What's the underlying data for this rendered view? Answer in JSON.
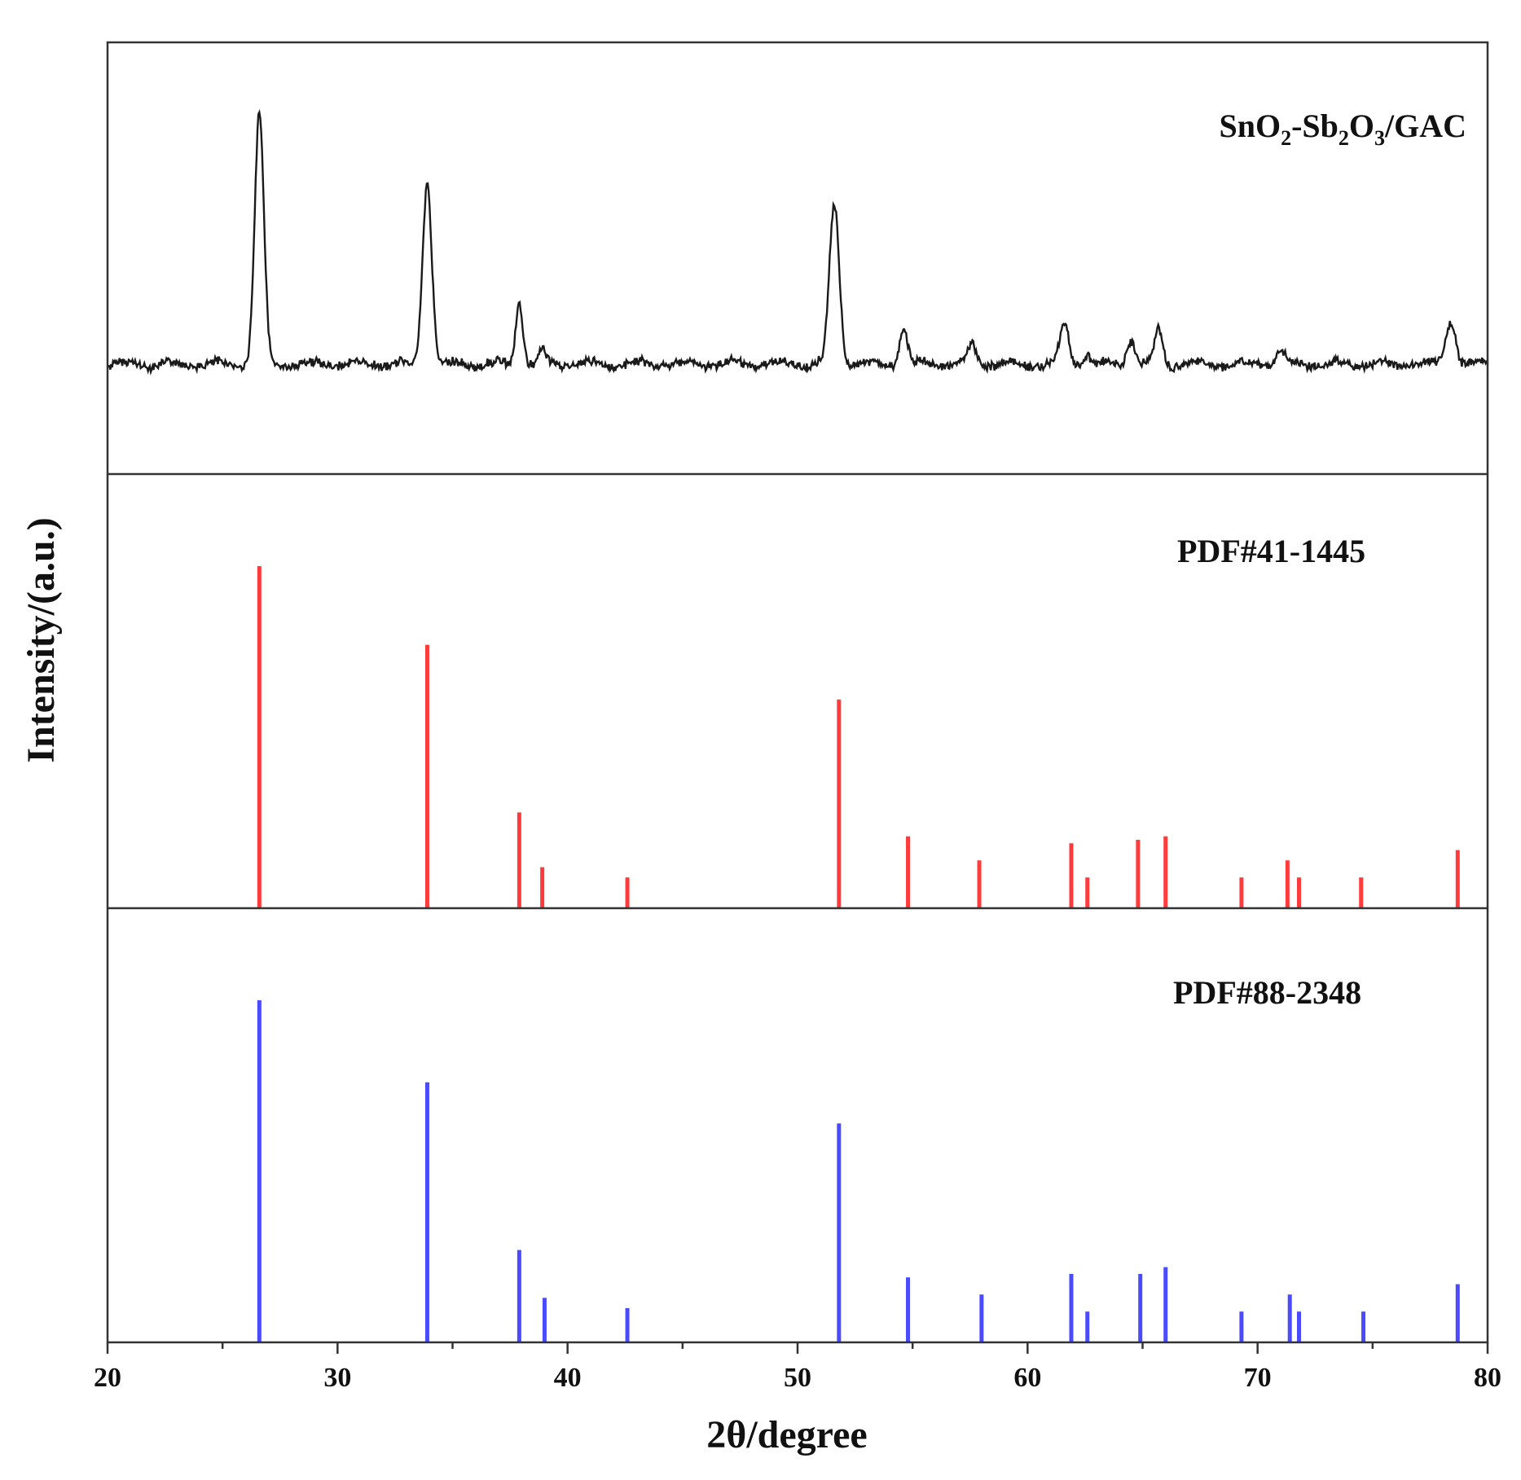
{
  "chart_data": {
    "type": "line",
    "xlabel": "2θ/degree",
    "ylabel": "Intensity/(a.u.)",
    "xlim": [
      20,
      80
    ],
    "x_ticks": [
      20,
      30,
      40,
      50,
      60,
      70,
      80
    ],
    "grid": false,
    "panels": [
      {
        "kind": "profile",
        "label": {
          "main": "SnO",
          "s1": "2",
          "mid": "-Sb",
          "s2": "2",
          "mid2": "O",
          "s3": "3",
          "tail": "/GAC"
        },
        "color": "#1a1a1a",
        "baseline": 0.08,
        "peaks": [
          {
            "x": 26.6,
            "h": 1.0,
            "w": 0.28
          },
          {
            "x": 33.9,
            "h": 0.73,
            "w": 0.28
          },
          {
            "x": 37.9,
            "h": 0.25,
            "w": 0.22
          },
          {
            "x": 38.9,
            "h": 0.05,
            "w": 0.2
          },
          {
            "x": 51.6,
            "h": 0.64,
            "w": 0.3
          },
          {
            "x": 54.6,
            "h": 0.14,
            "w": 0.25
          },
          {
            "x": 57.6,
            "h": 0.08,
            "w": 0.25
          },
          {
            "x": 61.6,
            "h": 0.16,
            "w": 0.28
          },
          {
            "x": 62.6,
            "h": 0.04,
            "w": 0.2
          },
          {
            "x": 64.5,
            "h": 0.1,
            "w": 0.25
          },
          {
            "x": 65.7,
            "h": 0.14,
            "w": 0.25
          },
          {
            "x": 71.0,
            "h": 0.05,
            "w": 0.3
          },
          {
            "x": 78.4,
            "h": 0.18,
            "w": 0.3
          }
        ]
      },
      {
        "kind": "sticks",
        "label": {
          "main": "PDF#41-1445"
        },
        "color": "#ff3b3b",
        "sticks": [
          {
            "x": 26.6,
            "h": 1.0
          },
          {
            "x": 33.9,
            "h": 0.77
          },
          {
            "x": 37.9,
            "h": 0.28
          },
          {
            "x": 38.9,
            "h": 0.12
          },
          {
            "x": 42.6,
            "h": 0.09
          },
          {
            "x": 51.8,
            "h": 0.61
          },
          {
            "x": 54.8,
            "h": 0.21
          },
          {
            "x": 57.9,
            "h": 0.14
          },
          {
            "x": 61.9,
            "h": 0.19
          },
          {
            "x": 62.6,
            "h": 0.09
          },
          {
            "x": 64.8,
            "h": 0.2
          },
          {
            "x": 66.0,
            "h": 0.21
          },
          {
            "x": 69.3,
            "h": 0.09
          },
          {
            "x": 71.3,
            "h": 0.14
          },
          {
            "x": 71.8,
            "h": 0.09
          },
          {
            "x": 74.5,
            "h": 0.09
          },
          {
            "x": 78.7,
            "h": 0.17
          }
        ]
      },
      {
        "kind": "sticks",
        "label": {
          "main": "PDF#88-2348"
        },
        "color": "#4a4aff",
        "sticks": [
          {
            "x": 26.6,
            "h": 1.0
          },
          {
            "x": 33.9,
            "h": 0.76
          },
          {
            "x": 37.9,
            "h": 0.27
          },
          {
            "x": 39.0,
            "h": 0.13
          },
          {
            "x": 42.6,
            "h": 0.1
          },
          {
            "x": 51.8,
            "h": 0.64
          },
          {
            "x": 54.8,
            "h": 0.19
          },
          {
            "x": 58.0,
            "h": 0.14
          },
          {
            "x": 61.9,
            "h": 0.2
          },
          {
            "x": 62.6,
            "h": 0.09
          },
          {
            "x": 64.9,
            "h": 0.2
          },
          {
            "x": 66.0,
            "h": 0.22
          },
          {
            "x": 69.3,
            "h": 0.09
          },
          {
            "x": 71.4,
            "h": 0.14
          },
          {
            "x": 71.8,
            "h": 0.09
          },
          {
            "x": 74.6,
            "h": 0.09
          },
          {
            "x": 78.7,
            "h": 0.17
          }
        ]
      }
    ]
  }
}
